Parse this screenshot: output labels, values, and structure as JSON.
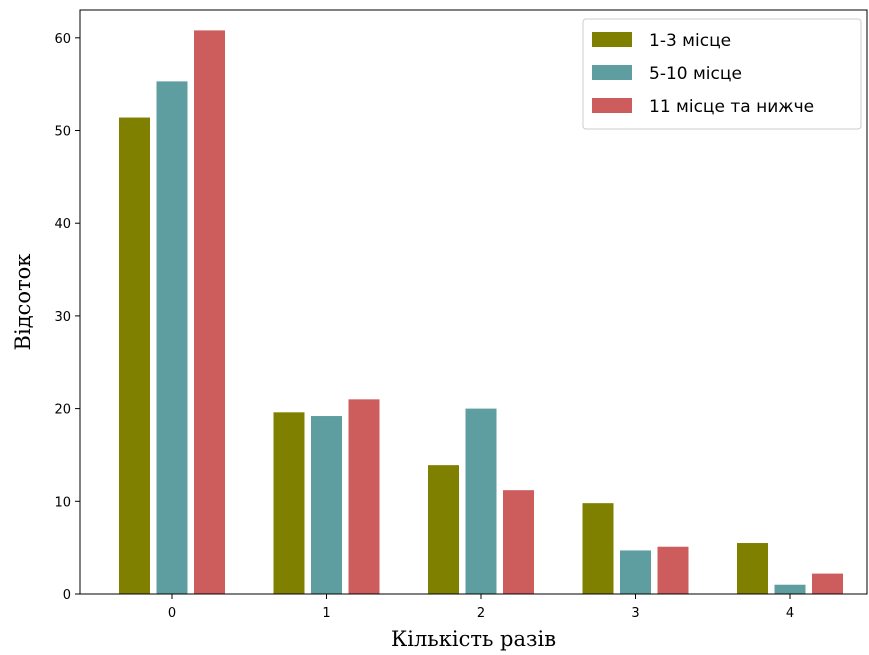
{
  "chart_data": {
    "type": "bar",
    "xlabel": "Кількість разів",
    "ylabel": "Відсоток",
    "categories": [
      "0",
      "1",
      "2",
      "3",
      "4"
    ],
    "ylim": [
      0,
      63
    ],
    "yticks": [
      0,
      10,
      20,
      30,
      40,
      50,
      60
    ],
    "grid": false,
    "legend_position": "top-right",
    "series": [
      {
        "name": "1-3 місце",
        "color": "#808000",
        "values": [
          51.4,
          19.6,
          13.9,
          9.8,
          5.5
        ]
      },
      {
        "name": "5-10 місце",
        "color": "#5f9ea0",
        "values": [
          55.3,
          19.2,
          20.0,
          4.7,
          1.0
        ]
      },
      {
        "name": "11 місце та нижче",
        "color": "#cd5c5c",
        "values": [
          60.8,
          21.0,
          11.2,
          5.1,
          2.2
        ]
      }
    ]
  }
}
